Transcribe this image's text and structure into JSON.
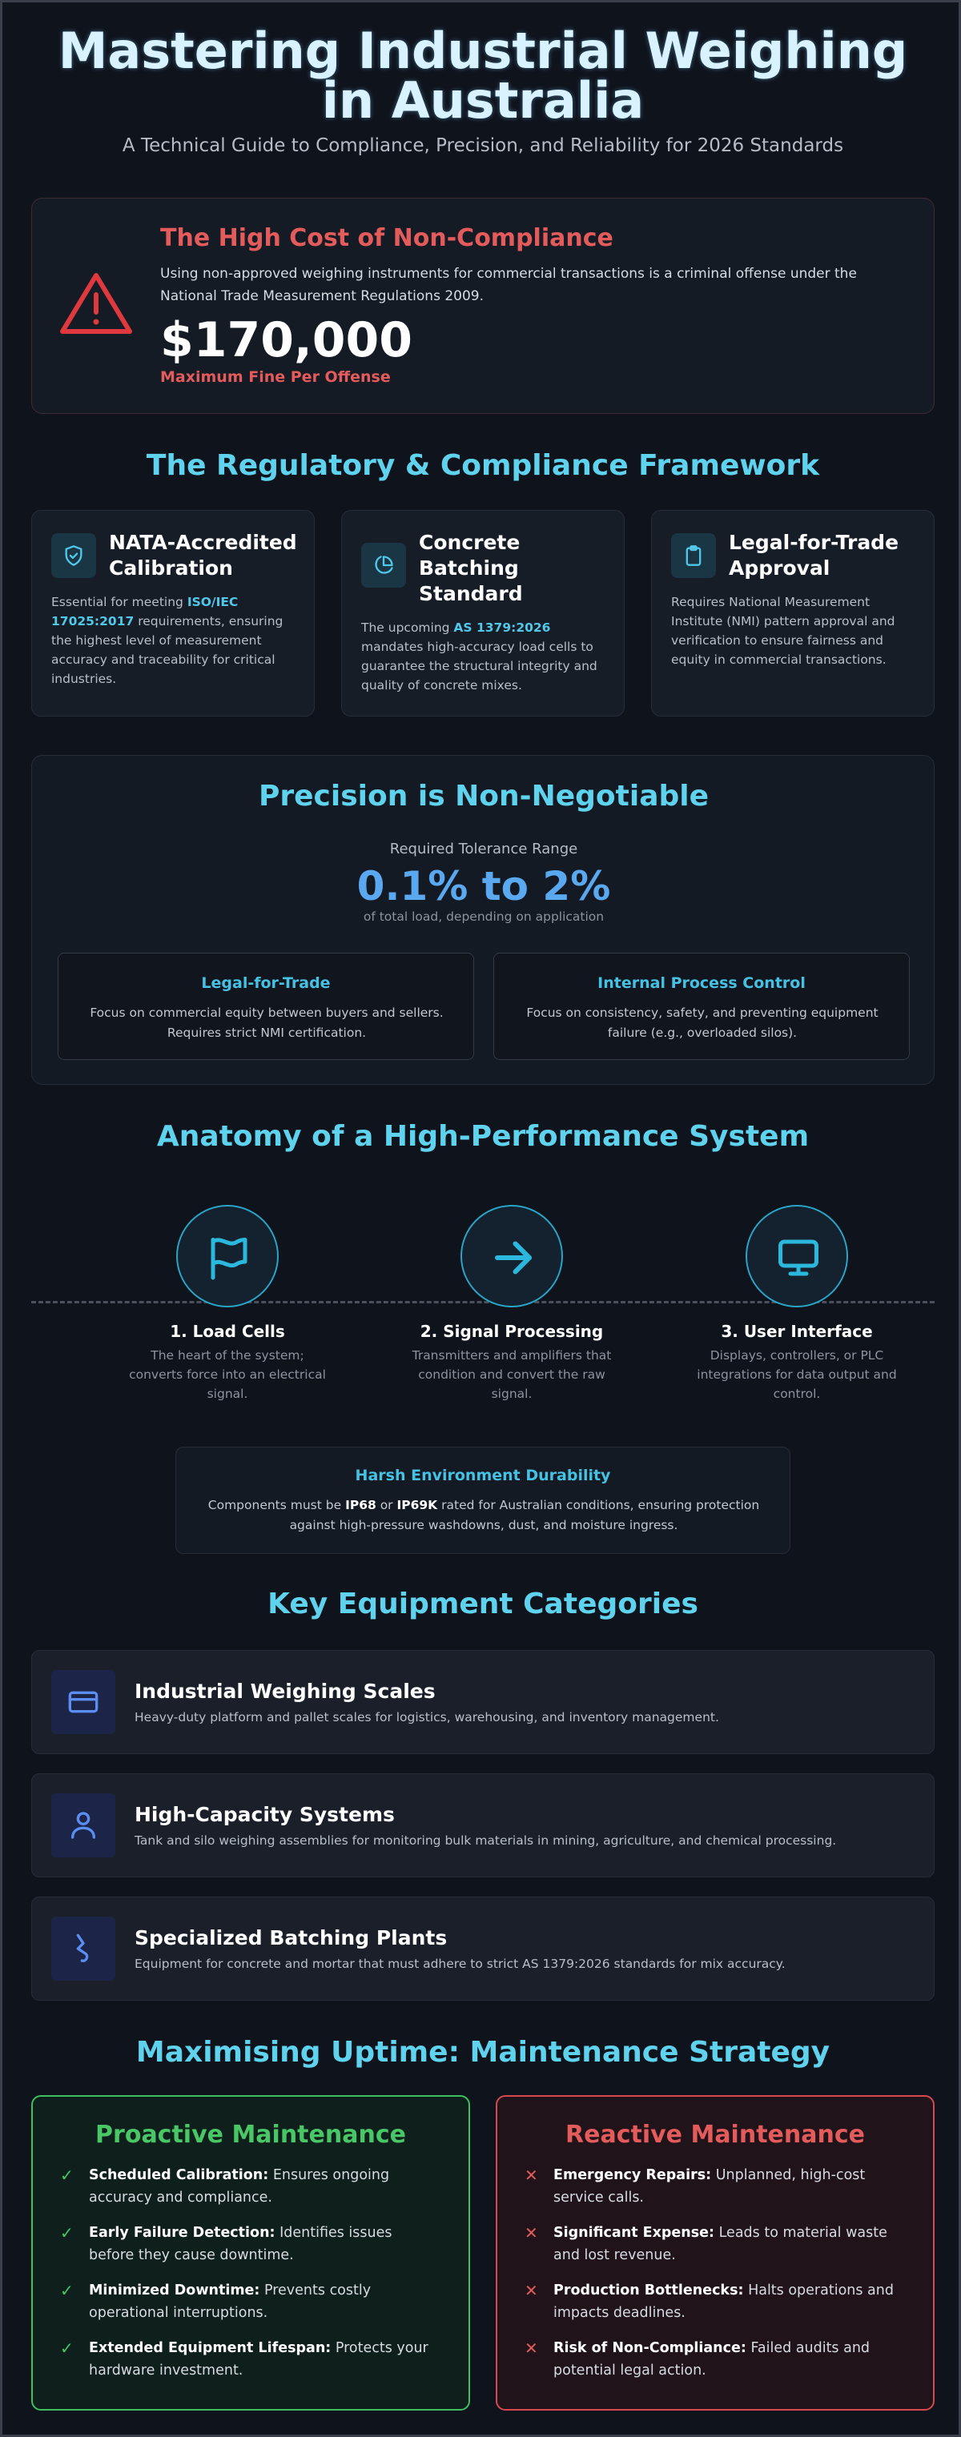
{
  "header": {
    "title": "Mastering Industrial Weighing in Australia",
    "subtitle": "A Technical Guide to Compliance, Precision, and Reliability for 2026 Standards"
  },
  "alert": {
    "icon": "warning-triangle-icon",
    "title": "The High Cost of Non-Compliance",
    "body": "Using non-approved weighing instruments for commercial transactions is a criminal offense under the National Trade Measurement Regulations 2009.",
    "amount": "$170,000",
    "amount_label": "Maximum Fine Per Offense"
  },
  "regulatory": {
    "title": "The Regulatory & Compliance Framework",
    "cards": [
      {
        "icon": "shield-check-icon",
        "title": "NATA-Accredited Calibration",
        "pre": "Essential for meeting ",
        "highlight": "ISO/IEC 17025:2017",
        "post": " requirements, ensuring the highest level of measurement accuracy and traceability for critical industries."
      },
      {
        "icon": "pie-chart-icon",
        "title": "Concrete Batching Standard",
        "pre": "The upcoming ",
        "highlight": "AS 1379:2026",
        "post": " mandates high-accuracy load cells to guarantee the structural integrity and quality of concrete mixes."
      },
      {
        "icon": "clipboard-icon",
        "title": "Legal-for-Trade Approval",
        "pre": "Requires National Measurement Institute (NMI) pattern approval and verification to ensure fairness and equity in commercial transactions.",
        "highlight": "",
        "post": ""
      }
    ]
  },
  "precision": {
    "title": "Precision is Non-Negotiable",
    "label": "Required Tolerance Range",
    "value": "0.1% to 2%",
    "note": "of total load, depending on application",
    "boxes": [
      {
        "title": "Legal-for-Trade",
        "body": "Focus on commercial equity between buyers and sellers. Requires strict NMI certification."
      },
      {
        "title": "Internal Process Control",
        "body": "Focus on consistency, safety, and preventing equipment failure (e.g., overloaded silos)."
      }
    ]
  },
  "anatomy": {
    "title": "Anatomy of a High-Performance System",
    "steps": [
      {
        "icon": "flag-icon",
        "title": "1. Load Cells",
        "body": "The heart of the system; converts force into an electrical signal."
      },
      {
        "icon": "arrow-right-icon",
        "title": "2. Signal Processing",
        "body": "Transmitters and amplifiers that condition and convert the raw signal."
      },
      {
        "icon": "monitor-icon",
        "title": "3. User Interface",
        "body": "Displays, controllers, or PLC integrations for data output and control."
      }
    ],
    "harsh": {
      "title": "Harsh Environment Durability",
      "pre": "Components must be ",
      "r1": "IP68",
      "mid": " or ",
      "r2": "IP69K",
      "post": " rated for Australian conditions, ensuring protection against high-pressure washdowns, dust, and moisture ingress."
    }
  },
  "equipment": {
    "title": "Key Equipment Categories",
    "items": [
      {
        "icon": "credit-card-icon",
        "title": "Industrial Weighing Scales",
        "body": "Heavy-duty platform and pallet scales for logistics, warehousing, and inventory management."
      },
      {
        "icon": "user-icon",
        "title": "High-Capacity Systems",
        "body": "Tank and silo weighing assemblies for monitoring bulk materials in mining, agriculture, and chemical processing."
      },
      {
        "icon": "wave-icon",
        "title": "Specialized Batching Plants",
        "body": "Equipment for concrete and mortar that must adhere to strict AS 1379:2026 standards for mix accuracy."
      }
    ]
  },
  "maintenance": {
    "title": "Maximising Uptime: Maintenance Strategy",
    "proactive": {
      "title": "Proactive Maintenance",
      "mark": "✓",
      "items": [
        {
          "label": "Scheduled Calibration:",
          "text": " Ensures ongoing accuracy and compliance."
        },
        {
          "label": "Early Failure Detection:",
          "text": " Identifies issues before they cause downtime."
        },
        {
          "label": "Minimized Downtime:",
          "text": " Prevents costly operational interruptions."
        },
        {
          "label": "Extended Equipment Lifespan:",
          "text": " Protects your hardware investment."
        }
      ]
    },
    "reactive": {
      "title": "Reactive Maintenance",
      "mark": "✕",
      "items": [
        {
          "label": "Emergency Repairs:",
          "text": " Unplanned, high-cost service calls."
        },
        {
          "label": "Significant Expense:",
          "text": " Leads to material waste and lost revenue."
        },
        {
          "label": "Production Bottlenecks:",
          "text": " Halts operations and impacts deadlines."
        },
        {
          "label": "Risk of Non-Compliance:",
          "text": " Failed audits and potential legal action."
        }
      ]
    }
  }
}
